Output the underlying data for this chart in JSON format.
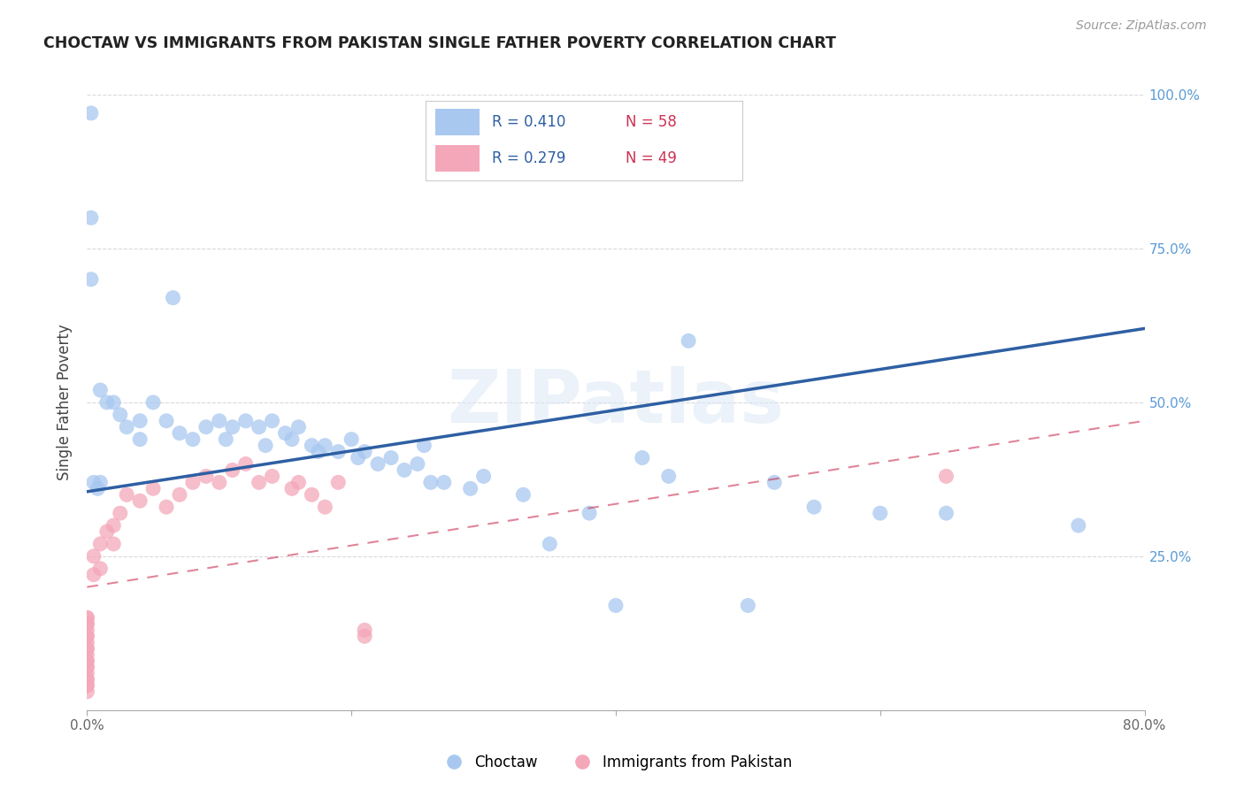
{
  "title": "CHOCTAW VS IMMIGRANTS FROM PAKISTAN SINGLE FATHER POVERTY CORRELATION CHART",
  "source": "Source: ZipAtlas.com",
  "ylabel": "Single Father Poverty",
  "xlim": [
    0,
    0.8
  ],
  "ylim": [
    0,
    1.0
  ],
  "xtick_vals": [
    0.0,
    0.2,
    0.4,
    0.6,
    0.8
  ],
  "xticklabels": [
    "0.0%",
    "",
    "",
    "",
    "80.0%"
  ],
  "ytick_vals": [
    0.0,
    0.25,
    0.5,
    0.75,
    1.0
  ],
  "yticklabels_right": [
    "",
    "25.0%",
    "50.0%",
    "75.0%",
    "100.0%"
  ],
  "choctaw_color": "#a8c8f0",
  "pakistan_color": "#f4a7b9",
  "trendline_blue_color": "#2e5fa3",
  "trendline_pink_color": "#cc3355",
  "legend_label_blue": "Choctaw",
  "legend_label_pink": "Immigrants from Pakistan",
  "legend_R_blue": "R = 0.410",
  "legend_N_blue": "N = 58",
  "legend_R_pink": "R = 0.279",
  "legend_N_pink": "N = 49",
  "watermark": "ZIPatlas",
  "background_color": "#ffffff",
  "blue_trend_x0": 0.0,
  "blue_trend_y0": 0.355,
  "blue_trend_x1": 0.8,
  "blue_trend_y1": 0.62,
  "pink_trend_x0": 0.0,
  "pink_trend_y0": 0.2,
  "pink_trend_x1": 0.8,
  "pink_trend_y1": 0.47,
  "blue_x": [
    0.003,
    0.003,
    0.003,
    0.005,
    0.008,
    0.01,
    0.01,
    0.015,
    0.02,
    0.025,
    0.03,
    0.04,
    0.04,
    0.05,
    0.06,
    0.065,
    0.07,
    0.08,
    0.09,
    0.1,
    0.105,
    0.11,
    0.12,
    0.13,
    0.135,
    0.14,
    0.15,
    0.155,
    0.16,
    0.17,
    0.175,
    0.18,
    0.19,
    0.2,
    0.205,
    0.21,
    0.22,
    0.23,
    0.24,
    0.25,
    0.255,
    0.26,
    0.27,
    0.29,
    0.3,
    0.33,
    0.35,
    0.38,
    0.4,
    0.42,
    0.44,
    0.455,
    0.5,
    0.52,
    0.55,
    0.6,
    0.65,
    0.75
  ],
  "blue_y": [
    0.97,
    0.8,
    0.7,
    0.37,
    0.36,
    0.37,
    0.52,
    0.5,
    0.5,
    0.48,
    0.46,
    0.47,
    0.44,
    0.5,
    0.47,
    0.67,
    0.45,
    0.44,
    0.46,
    0.47,
    0.44,
    0.46,
    0.47,
    0.46,
    0.43,
    0.47,
    0.45,
    0.44,
    0.46,
    0.43,
    0.42,
    0.43,
    0.42,
    0.44,
    0.41,
    0.42,
    0.4,
    0.41,
    0.39,
    0.4,
    0.43,
    0.37,
    0.37,
    0.36,
    0.38,
    0.35,
    0.27,
    0.32,
    0.17,
    0.41,
    0.38,
    0.6,
    0.17,
    0.37,
    0.33,
    0.32,
    0.32,
    0.3
  ],
  "pink_x": [
    0.0,
    0.0,
    0.0,
    0.0,
    0.0,
    0.0,
    0.0,
    0.0,
    0.0,
    0.0,
    0.0,
    0.0,
    0.0,
    0.0,
    0.0,
    0.0,
    0.0,
    0.0,
    0.0,
    0.0,
    0.0,
    0.005,
    0.005,
    0.01,
    0.01,
    0.015,
    0.02,
    0.02,
    0.025,
    0.03,
    0.04,
    0.05,
    0.06,
    0.07,
    0.08,
    0.09,
    0.1,
    0.11,
    0.12,
    0.13,
    0.14,
    0.155,
    0.16,
    0.17,
    0.18,
    0.19,
    0.21,
    0.65,
    0.21
  ],
  "pink_y": [
    0.15,
    0.15,
    0.14,
    0.14,
    0.13,
    0.12,
    0.12,
    0.11,
    0.1,
    0.1,
    0.09,
    0.08,
    0.08,
    0.07,
    0.07,
    0.06,
    0.05,
    0.05,
    0.04,
    0.04,
    0.03,
    0.25,
    0.22,
    0.27,
    0.23,
    0.29,
    0.3,
    0.27,
    0.32,
    0.35,
    0.34,
    0.36,
    0.33,
    0.35,
    0.37,
    0.38,
    0.37,
    0.39,
    0.4,
    0.37,
    0.38,
    0.36,
    0.37,
    0.35,
    0.33,
    0.37,
    0.13,
    0.38,
    0.12
  ]
}
